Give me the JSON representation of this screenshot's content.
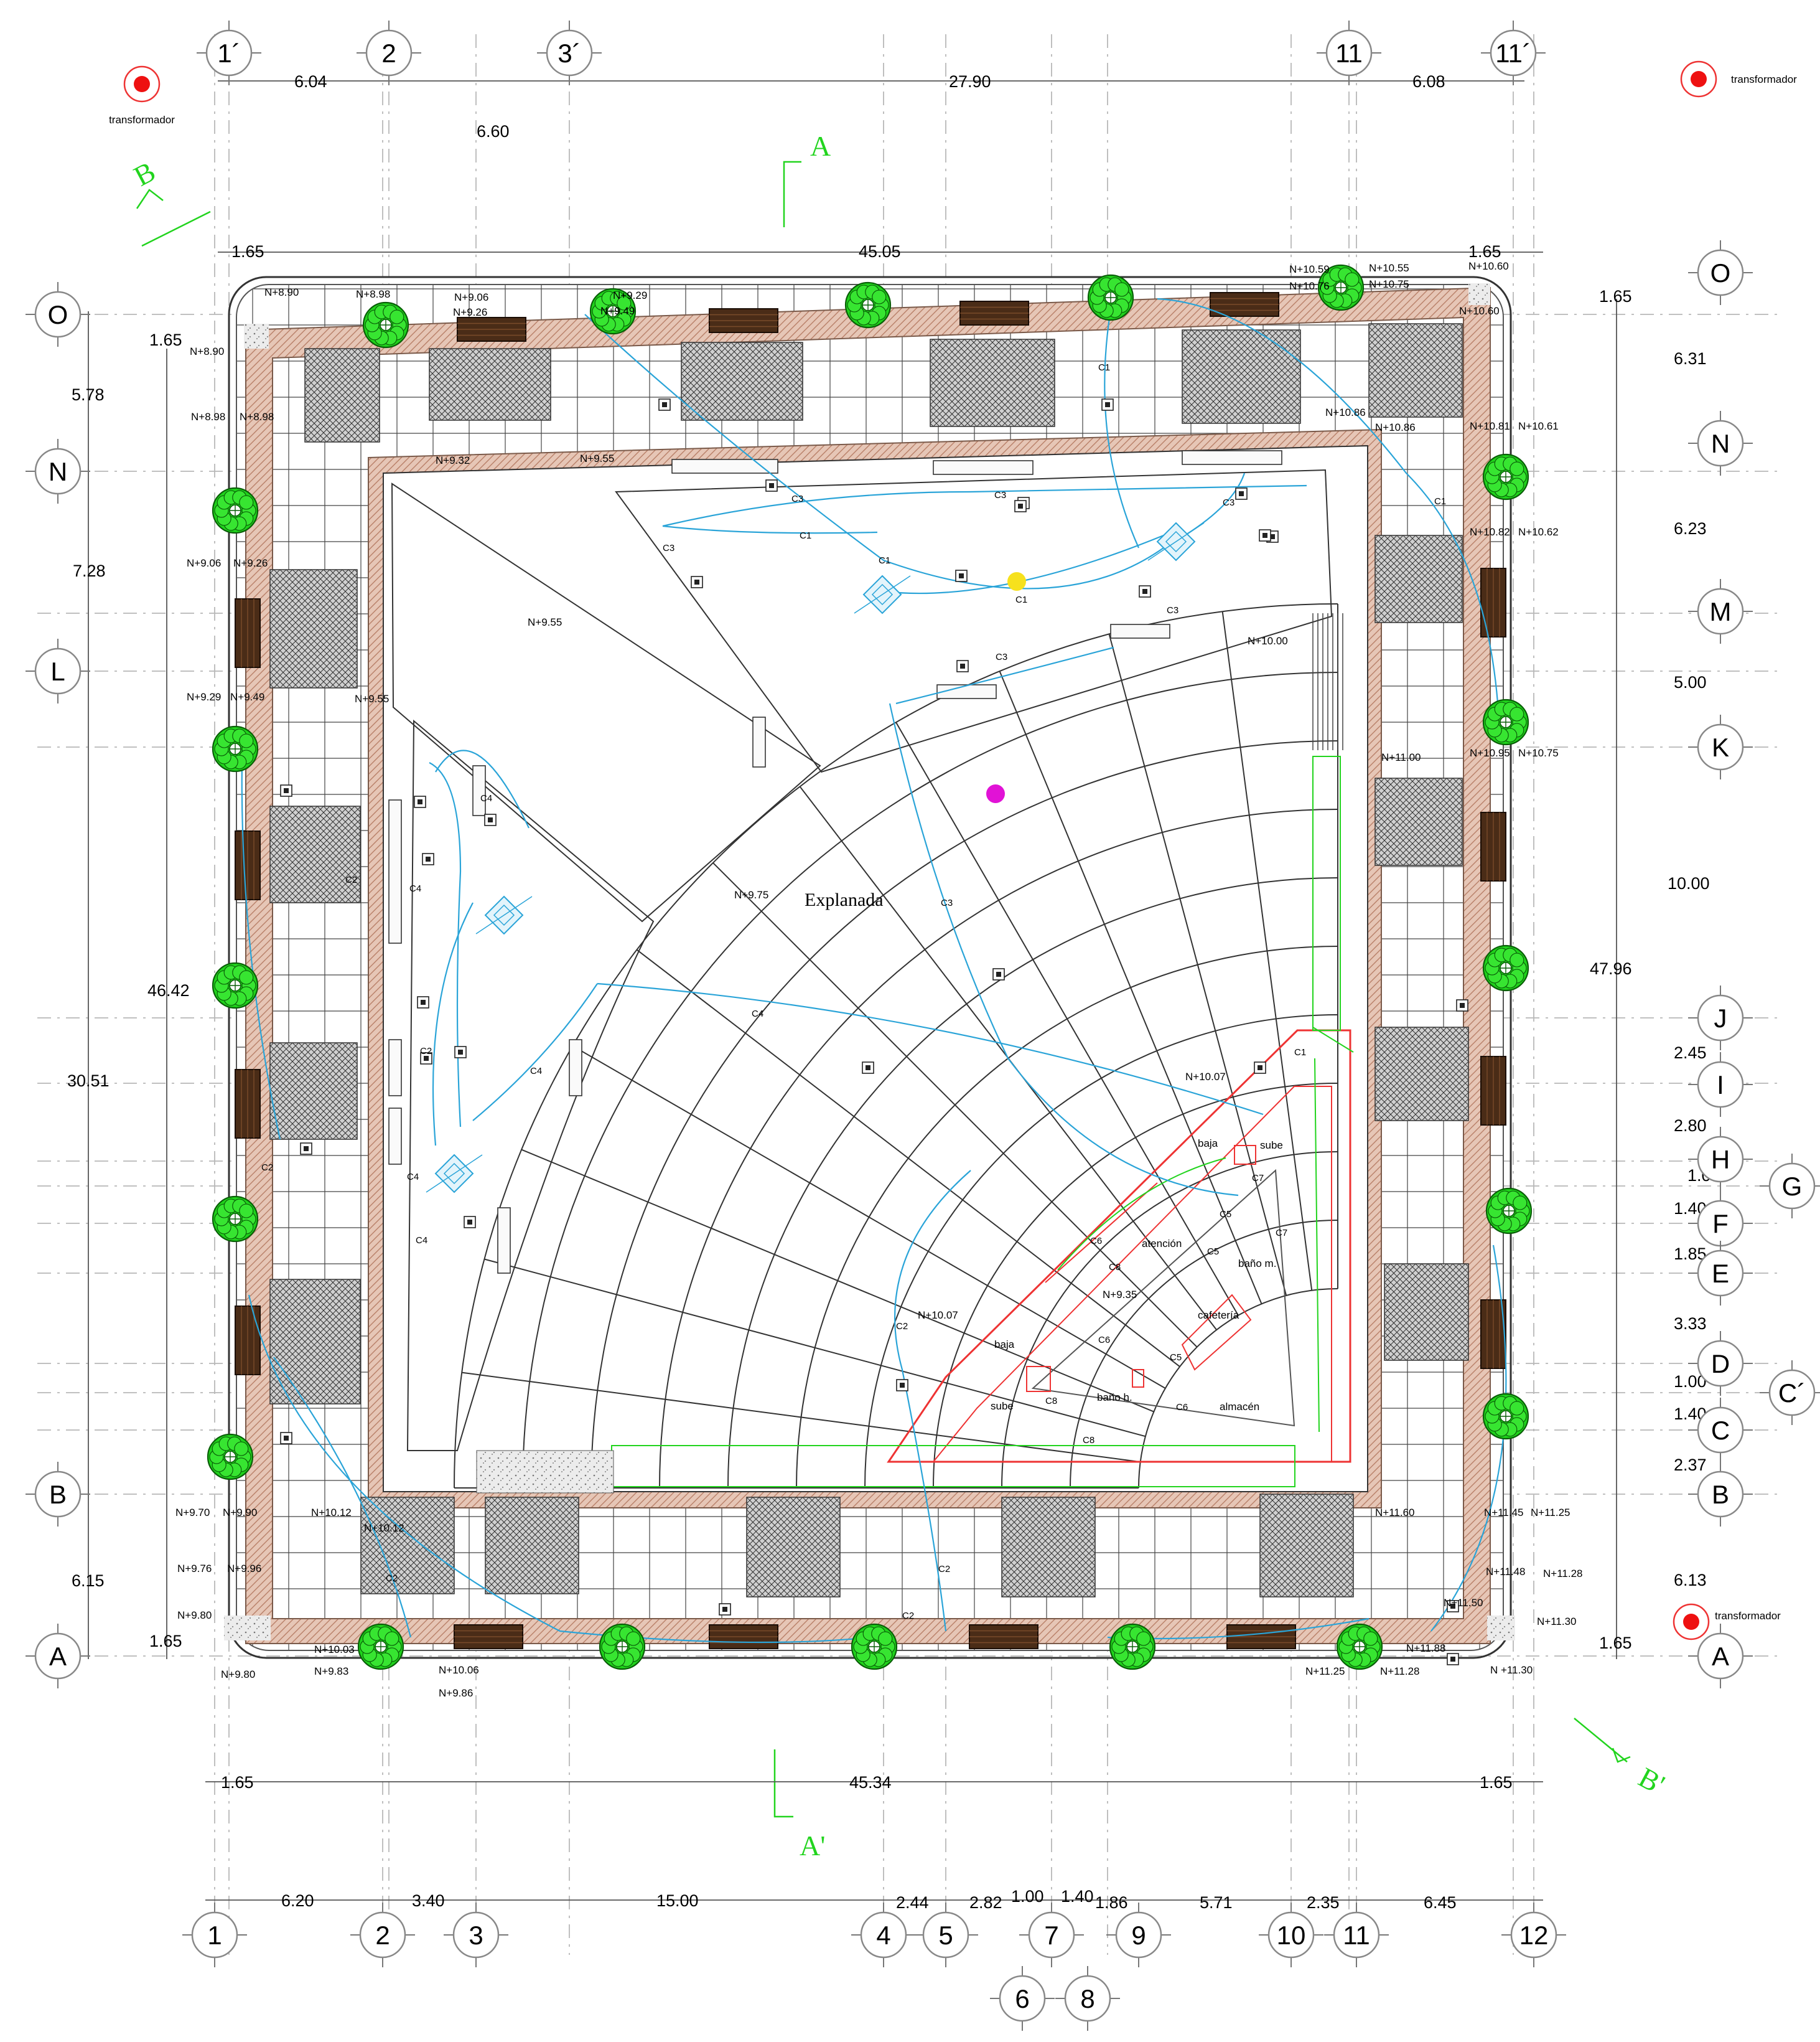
{
  "title": "Explanada",
  "colors": {
    "accent_green": "#22d41e",
    "utility_blue": "#2aa4d8",
    "paving": "#d9b6a4",
    "marker_red": "#ee1111",
    "yellow": "#f6e11d",
    "magenta": "#e112d6"
  },
  "axes": {
    "top": [
      "1´",
      "2",
      "3´",
      "11",
      "11´"
    ],
    "bottom": [
      "1",
      "2",
      "3",
      "4",
      "5",
      "7",
      "9",
      "10",
      "11",
      "12"
    ],
    "bottom_lower": [
      "6",
      "8"
    ],
    "left": [
      "O",
      "N",
      "L",
      "B",
      "A"
    ],
    "right": [
      "O",
      "N",
      "M",
      "K",
      "J",
      "I",
      "H",
      "G",
      "F",
      "E",
      "D",
      "C´",
      "C",
      "B",
      "A"
    ]
  },
  "dimensions": {
    "top_row": [
      "6.04",
      "27.90",
      "6.08"
    ],
    "top_extra": "6.60",
    "top_overall": [
      "1.65",
      "45.05",
      "1.65"
    ],
    "bottom_overall": [
      "1.65",
      "45.34",
      "1.65"
    ],
    "bottom_row": [
      "6.20",
      "3.40",
      "15.00",
      "2.44",
      "2.82",
      "1.00",
      "1.40",
      "1.86",
      "5.71",
      "2.35",
      "6.45"
    ],
    "left": [
      "1.65",
      "5.78",
      "7.28",
      "46.42",
      "30.51",
      "6.15",
      "1.65"
    ],
    "right": [
      "1.65",
      "6.31",
      "6.23",
      "5.00",
      "10.00",
      "47.96",
      "2.45",
      "2.80",
      "1.00",
      "1.40",
      "1.85",
      "3.33",
      "1.00",
      "1.40",
      "2.37",
      "6.13",
      "1.65"
    ]
  },
  "sections": [
    "A",
    "A'",
    "B",
    "B'"
  ],
  "transformer_label": "transformador",
  "rooms": [
    "atención",
    "cafetería",
    "baño m.",
    "baño h.",
    "almacén",
    "baja",
    "sube"
  ],
  "circuits": [
    "C1",
    "C2",
    "C3",
    "C4",
    "C5",
    "C6",
    "C7",
    "C8"
  ],
  "levels": {
    "top_edge": [
      "N+8.90",
      "N+8.98",
      "N+9.06",
      "N+9.26",
      "N+9.29",
      "N+9.49",
      "N+10.59",
      "N+10.55",
      "N+10.60",
      "N+10.75",
      "N+10.76"
    ],
    "left_edge": [
      "N+8.90",
      "N+8.98",
      "N+9.06",
      "N+9.26",
      "N+9.29",
      "N+9.49",
      "N+9.55",
      "N+9.70",
      "N+9.90",
      "N+9.76",
      "N+9.96",
      "N+9.80",
      "N+9.80",
      "N+9.83",
      "N+10.03"
    ],
    "right_edge": [
      "N+10.60",
      "N+10.81",
      "N+10.61",
      "N+10.82",
      "N+10.62",
      "N+10.95",
      "N+10.75",
      "N+11.45",
      "N+11.25",
      "N+11.48",
      "N+11.28",
      "N+11.50",
      "N+11.30"
    ],
    "interior": [
      "N+9.32",
      "N+9.55",
      "N+9.55",
      "N+9.75",
      "N+10.00",
      "N+10.07",
      "N+10.07",
      "N+9.35",
      "N+10.86",
      "N+10.86",
      "N+11.00",
      "N+11.60",
      "N+10.12",
      "N+10.12",
      "N+10.06",
      "N+9.86",
      "N+11.88",
      "N+11.25",
      "N+11.28",
      "N +11.30"
    ]
  }
}
